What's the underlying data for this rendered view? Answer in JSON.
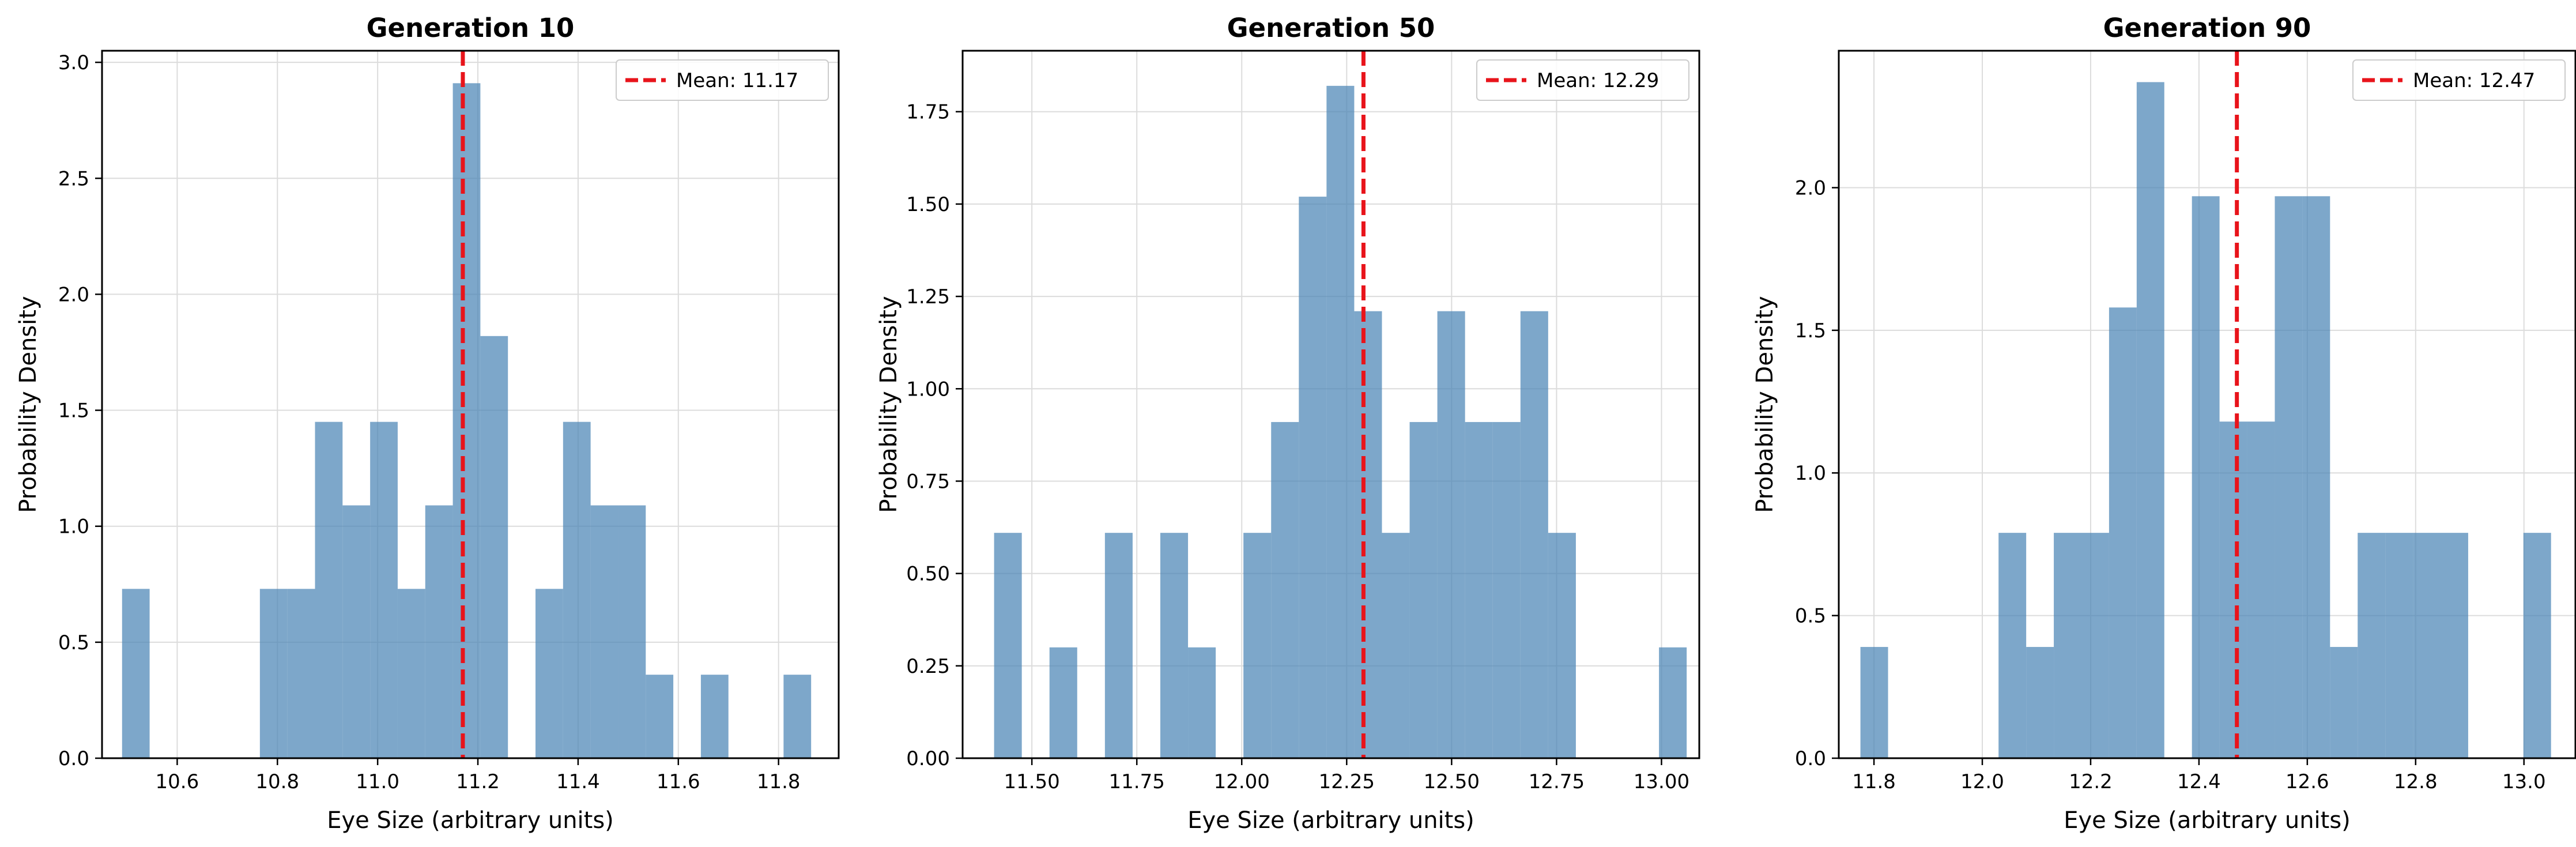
{
  "chart_data": [
    {
      "type": "bar",
      "title": "Generation 10",
      "xlabel": "Eye Size (arbitrary units)",
      "ylabel": "Probability Density",
      "xlim": [
        10.45,
        11.92
      ],
      "ylim": [
        0,
        3.05
      ],
      "xticks": [
        "10.6",
        "10.8",
        "11.0",
        "11.2",
        "11.4",
        "11.6",
        "11.8"
      ],
      "yticks": [
        "0.0",
        "0.5",
        "1.0",
        "1.5",
        "2.0",
        "2.5",
        "3.0"
      ],
      "grid": true,
      "legend_position": "top-right",
      "bar_color": "#4682b4",
      "mean": {
        "value": 11.17,
        "label": "Mean: 11.17",
        "color": "#e8141b"
      },
      "bins": [
        [
          10.49,
          10.545,
          0.73
        ],
        [
          10.545,
          10.6,
          0
        ],
        [
          10.6,
          10.655,
          0
        ],
        [
          10.655,
          10.71,
          0
        ],
        [
          10.71,
          10.765,
          0
        ],
        [
          10.765,
          10.82,
          0.73
        ],
        [
          10.82,
          10.875,
          0.73
        ],
        [
          10.875,
          10.93,
          1.45
        ],
        [
          10.93,
          10.985,
          1.09
        ],
        [
          10.985,
          11.04,
          1.45
        ],
        [
          11.04,
          11.095,
          0.73
        ],
        [
          11.095,
          11.15,
          1.09
        ],
        [
          11.15,
          11.205,
          2.91
        ],
        [
          11.205,
          11.26,
          1.82
        ],
        [
          11.26,
          11.315,
          0
        ],
        [
          11.315,
          11.37,
          0.73
        ],
        [
          11.37,
          11.425,
          1.45
        ],
        [
          11.425,
          11.48,
          1.09
        ],
        [
          11.48,
          11.535,
          1.09
        ],
        [
          11.535,
          11.59,
          0.36
        ],
        [
          11.59,
          11.645,
          0
        ],
        [
          11.645,
          11.7,
          0.36
        ],
        [
          11.7,
          11.755,
          0
        ],
        [
          11.755,
          11.81,
          0
        ],
        [
          11.81,
          11.865,
          0.36
        ]
      ]
    },
    {
      "type": "bar",
      "title": "Generation 50",
      "xlabel": "Eye Size (arbitrary units)",
      "ylabel": "Probability Density",
      "xlim": [
        11.335,
        13.09
      ],
      "ylim": [
        0,
        1.915
      ],
      "xticks": [
        "11.50",
        "11.75",
        "12.00",
        "12.25",
        "12.50",
        "12.75",
        "13.00"
      ],
      "yticks": [
        "0.00",
        "0.25",
        "0.50",
        "0.75",
        "1.00",
        "1.25",
        "1.50",
        "1.75"
      ],
      "grid": true,
      "legend_position": "top-right",
      "bar_color": "#4682b4",
      "mean": {
        "value": 12.29,
        "label": "Mean: 12.29",
        "color": "#e8141b"
      },
      "bins": [
        [
          11.41,
          11.476,
          0.61
        ],
        [
          11.476,
          11.542,
          0
        ],
        [
          11.542,
          11.608,
          0.3
        ],
        [
          11.608,
          11.674,
          0
        ],
        [
          11.674,
          11.74,
          0.61
        ],
        [
          11.74,
          11.806,
          0
        ],
        [
          11.806,
          11.872,
          0.61
        ],
        [
          11.872,
          11.938,
          0.3
        ],
        [
          11.938,
          12.004,
          0
        ],
        [
          12.004,
          12.07,
          0.61
        ],
        [
          12.07,
          12.136,
          0.91
        ],
        [
          12.136,
          12.202,
          1.52
        ],
        [
          12.202,
          12.268,
          1.82
        ],
        [
          12.268,
          12.334,
          1.21
        ],
        [
          12.334,
          12.4,
          0.61
        ],
        [
          12.4,
          12.466,
          0.91
        ],
        [
          12.466,
          12.532,
          1.21
        ],
        [
          12.532,
          12.598,
          0.91
        ],
        [
          12.598,
          12.664,
          0.91
        ],
        [
          12.664,
          12.73,
          1.21
        ],
        [
          12.73,
          12.796,
          0.61
        ],
        [
          12.796,
          12.862,
          0
        ],
        [
          12.862,
          12.928,
          0
        ],
        [
          12.928,
          12.994,
          0
        ],
        [
          12.994,
          13.06,
          0.3
        ]
      ]
    },
    {
      "type": "bar",
      "title": "Generation 90",
      "xlabel": "Eye Size (arbitrary units)",
      "ylabel": "Probability Density",
      "xlim": [
        11.735,
        13.095
      ],
      "ylim": [
        0,
        2.48
      ],
      "xticks": [
        "11.8",
        "12.0",
        "12.2",
        "12.4",
        "12.6",
        "12.8",
        "13.0"
      ],
      "yticks": [
        "0.0",
        "0.5",
        "1.0",
        "1.5",
        "2.0"
      ],
      "grid": true,
      "legend_position": "top-right",
      "bar_color": "#4682b4",
      "mean": {
        "value": 12.47,
        "label": "Mean: 12.47",
        "color": "#e8141b"
      },
      "bins": [
        [
          11.775,
          11.826,
          0.39
        ],
        [
          11.826,
          11.877,
          0
        ],
        [
          11.877,
          11.928,
          0
        ],
        [
          11.928,
          11.979,
          0
        ],
        [
          11.979,
          12.03,
          0
        ],
        [
          12.03,
          12.081,
          0.79
        ],
        [
          12.081,
          12.132,
          0.39
        ],
        [
          12.132,
          12.183,
          0.79
        ],
        [
          12.183,
          12.234,
          0.79
        ],
        [
          12.234,
          12.285,
          1.58
        ],
        [
          12.285,
          12.336,
          2.37
        ],
        [
          12.336,
          12.387,
          0
        ],
        [
          12.387,
          12.438,
          1.97
        ],
        [
          12.438,
          12.489,
          1.18
        ],
        [
          12.489,
          12.54,
          1.18
        ],
        [
          12.54,
          12.591,
          1.97
        ],
        [
          12.591,
          12.642,
          1.97
        ],
        [
          12.642,
          12.693,
          0.39
        ],
        [
          12.693,
          12.744,
          0.79
        ],
        [
          12.744,
          12.795,
          0.79
        ],
        [
          12.795,
          12.846,
          0.79
        ],
        [
          12.846,
          12.897,
          0.79
        ],
        [
          12.897,
          12.948,
          0
        ],
        [
          12.948,
          12.999,
          0
        ],
        [
          12.999,
          13.05,
          0.79
        ]
      ]
    }
  ]
}
